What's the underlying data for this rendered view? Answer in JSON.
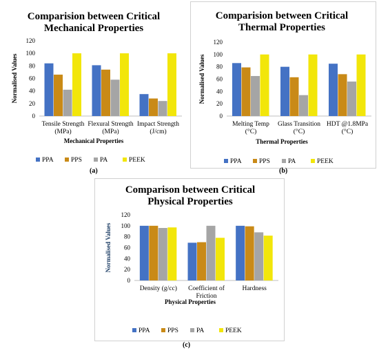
{
  "colors": {
    "PPA": "#4472C4",
    "PPS": "#C98A17",
    "PA": "#A5A5A5",
    "PEEK": "#F2E60A"
  },
  "charts": {
    "a": {
      "caption": "(a)",
      "chart_data": {
        "type": "bar",
        "title_lines": [
          "Comparision between Critical",
          "Mechanical Properties"
        ],
        "xlabel": "Mechanical Properties",
        "ylabel": "Normalised Values",
        "ylim": [
          0,
          120
        ],
        "yticks": [
          0,
          20,
          40,
          60,
          80,
          100,
          120
        ],
        "categories": [
          [
            "Tensile Strength",
            "(MPa)"
          ],
          [
            "Flexural Strength",
            "(MPa)"
          ],
          [
            "Impact Strength",
            "(J/cm)"
          ]
        ],
        "series": [
          {
            "name": "PPA",
            "values": [
              84,
              81,
              35
            ]
          },
          {
            "name": "PPS",
            "values": [
              66,
              74,
              28
            ]
          },
          {
            "name": "PA",
            "values": [
              42,
              58,
              24
            ]
          },
          {
            "name": "PEEK",
            "values": [
              100,
              100,
              100
            ]
          }
        ],
        "legend_position": "bottom"
      }
    },
    "b": {
      "caption": "(b)",
      "chart_data": {
        "type": "bar",
        "title_lines": [
          "Comparision between Critical",
          "Thermal Properties"
        ],
        "xlabel": "Thermal Properties",
        "ylabel": "Normalised Values",
        "ylim": [
          0,
          120
        ],
        "yticks": [
          0,
          20,
          40,
          60,
          80,
          100,
          120
        ],
        "categories": [
          [
            "Melting Temp",
            "(°C)"
          ],
          [
            "Glass Transition",
            "(°C)"
          ],
          [
            "HDT @1.8MPa",
            "(°C)"
          ]
        ],
        "series": [
          {
            "name": "PPA",
            "values": [
              86,
              80,
              85
            ]
          },
          {
            "name": "PPS",
            "values": [
              79,
              63,
              68
            ]
          },
          {
            "name": "PA",
            "values": [
              65,
              34,
              56
            ]
          },
          {
            "name": "PEEK",
            "values": [
              100,
              100,
              100
            ]
          }
        ],
        "legend_position": "bottom"
      }
    },
    "c": {
      "caption": "(c)",
      "chart_data": {
        "type": "bar",
        "title_lines": [
          "Comparison between Critical",
          "Physical Properties"
        ],
        "xlabel": "Physical Properties",
        "ylabel": "Normalised Values",
        "ylim": [
          0,
          120
        ],
        "yticks": [
          0,
          20,
          40,
          60,
          80,
          100,
          120
        ],
        "categories": [
          [
            "Density (g/cc)"
          ],
          [
            "Coefficient of",
            "Friction"
          ],
          [
            "Hardness"
          ]
        ],
        "series": [
          {
            "name": "PPA",
            "values": [
              100,
              69,
              100
            ]
          },
          {
            "name": "PPS",
            "values": [
              100,
              70,
              99
            ]
          },
          {
            "name": "PA",
            "values": [
              96,
              100,
              88
            ]
          },
          {
            "name": "PEEK",
            "values": [
              97,
              78,
              82
            ]
          }
        ],
        "legend_position": "bottom"
      }
    }
  }
}
